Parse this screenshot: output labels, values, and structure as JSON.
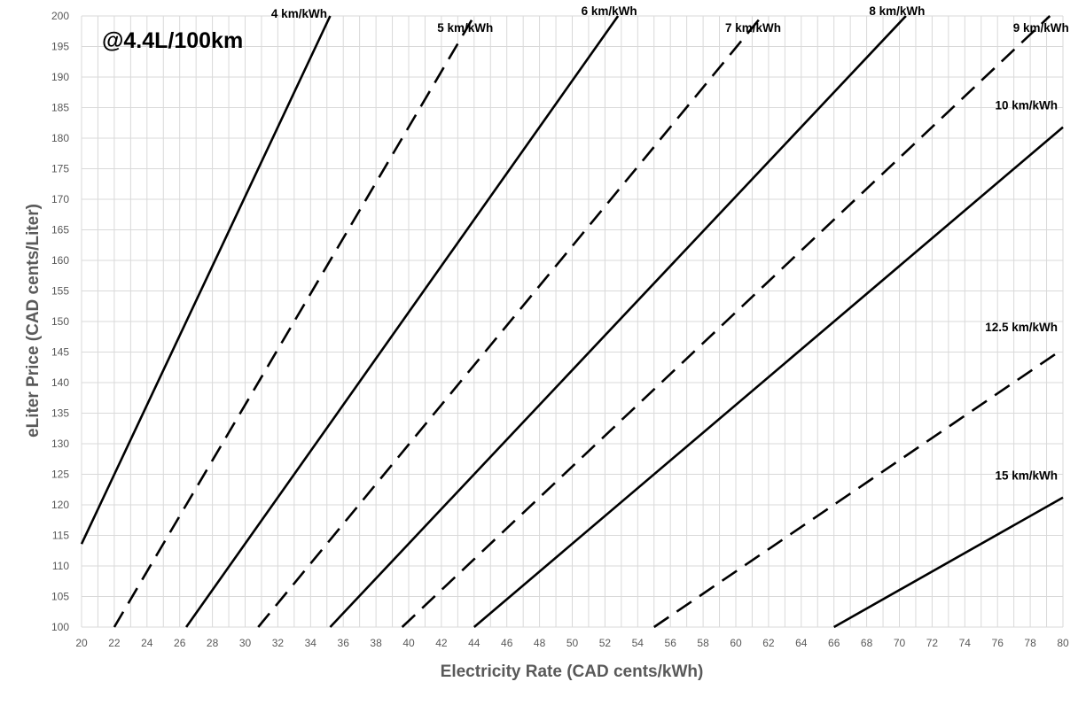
{
  "chart_data": {
    "type": "line",
    "title": "",
    "annotation": "@4.4L/100km",
    "xlabel": "Electricity Rate (CAD cents/kWh)",
    "ylabel": "eLiter Price (CAD cents/Liter)",
    "xlim": [
      20,
      80
    ],
    "ylim": [
      100,
      200
    ],
    "x_major_step": 2,
    "y_major_step": 5,
    "x_minor_step": 1,
    "grid": true,
    "legend": "none",
    "x_ticks": [
      "20",
      "22",
      "24",
      "26",
      "28",
      "30",
      "32",
      "34",
      "36",
      "38",
      "40",
      "42",
      "44",
      "46",
      "48",
      "50",
      "52",
      "54",
      "56",
      "58",
      "60",
      "62",
      "64",
      "66",
      "68",
      "70",
      "72",
      "74",
      "76",
      "78",
      "80"
    ],
    "y_ticks": [
      "100",
      "105",
      "110",
      "115",
      "120",
      "125",
      "130",
      "135",
      "140",
      "145",
      "150",
      "155",
      "160",
      "165",
      "170",
      "175",
      "180",
      "185",
      "190",
      "195",
      "200"
    ],
    "series": [
      {
        "name": "4 km/kWh",
        "dash": "solid",
        "x": [
          20,
          35.2
        ],
        "y": [
          113.6,
          200
        ]
      },
      {
        "name": "5 km/kWh",
        "dash": "dashed",
        "x": [
          22,
          44
        ],
        "y": [
          100,
          200
        ]
      },
      {
        "name": "6 km/kWh",
        "dash": "solid",
        "x": [
          26.4,
          52.8
        ],
        "y": [
          100,
          200
        ]
      },
      {
        "name": "7 km/kWh",
        "dash": "dashed",
        "x": [
          30.8,
          61.6
        ],
        "y": [
          100,
          200
        ]
      },
      {
        "name": "8 km/kWh",
        "dash": "solid",
        "x": [
          35.2,
          70.4
        ],
        "y": [
          100,
          200
        ]
      },
      {
        "name": "9 km/kWh",
        "dash": "dashed",
        "x": [
          39.6,
          79.2
        ],
        "y": [
          100,
          200
        ]
      },
      {
        "name": "10 km/kWh",
        "dash": "solid",
        "x": [
          44,
          80
        ],
        "y": [
          100,
          181.8
        ]
      },
      {
        "name": "12.5 km/kWh",
        "dash": "dashed",
        "x": [
          55,
          80
        ],
        "y": [
          100,
          145.5
        ]
      },
      {
        "name": "15 km/kWh",
        "dash": "solid",
        "x": [
          66,
          80
        ],
        "y": [
          100,
          121.2
        ]
      }
    ]
  }
}
